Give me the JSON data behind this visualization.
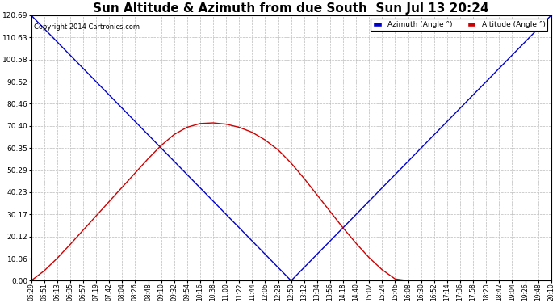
{
  "title": "Sun Altitude & Azimuth from due South  Sun Jul 13 20:24",
  "copyright": "Copyright 2014 Cartronics.com",
  "legend_azimuth": "Azimuth (Angle °)",
  "legend_altitude": "Altitude (Angle °)",
  "y_ticks": [
    0.0,
    10.06,
    20.12,
    30.17,
    40.23,
    50.29,
    60.35,
    70.4,
    80.46,
    90.52,
    100.58,
    110.63,
    120.69
  ],
  "y_max": 120.69,
  "y_min": 0.0,
  "color_azimuth": "#0000cc",
  "color_altitude": "#cc0000",
  "background_plot": "#ffffff",
  "background_fig": "#ffffff",
  "grid_color": "#bbbbbb",
  "title_fontsize": 11,
  "x_times": [
    "05:29",
    "05:51",
    "06:13",
    "06:35",
    "06:57",
    "07:19",
    "07:42",
    "08:04",
    "08:26",
    "08:48",
    "09:10",
    "09:32",
    "09:54",
    "10:16",
    "10:38",
    "11:00",
    "11:22",
    "11:44",
    "12:06",
    "12:28",
    "12:50",
    "13:12",
    "13:34",
    "13:56",
    "14:18",
    "14:40",
    "15:02",
    "15:24",
    "15:46",
    "16:08",
    "16:30",
    "16:52",
    "17:14",
    "17:36",
    "17:58",
    "18:20",
    "18:42",
    "19:04",
    "19:26",
    "19:48",
    "20:10"
  ],
  "azimuth_values": [
    120.69,
    114.65,
    108.62,
    102.59,
    96.55,
    90.52,
    84.49,
    78.45,
    72.42,
    66.38,
    60.35,
    54.31,
    48.28,
    42.25,
    36.21,
    30.17,
    24.14,
    18.1,
    12.07,
    6.03,
    0.0,
    6.03,
    12.07,
    18.1,
    24.14,
    30.17,
    36.21,
    42.25,
    48.28,
    54.31,
    60.35,
    66.38,
    72.42,
    78.45,
    84.49,
    90.52,
    96.55,
    102.59,
    108.62,
    114.65,
    120.69
  ],
  "altitude_values": [
    0.0,
    4.5,
    10.2,
    16.5,
    23.0,
    29.5,
    36.0,
    42.5,
    49.0,
    55.5,
    61.5,
    66.5,
    69.8,
    71.5,
    71.8,
    71.2,
    69.8,
    67.5,
    64.0,
    59.5,
    53.5,
    46.5,
    39.0,
    31.5,
    24.0,
    17.0,
    10.5,
    5.0,
    0.8,
    0.0,
    0.0,
    0.0,
    0.0,
    0.0,
    0.0,
    0.0,
    0.0,
    0.0,
    0.0,
    0.0,
    0.0
  ]
}
